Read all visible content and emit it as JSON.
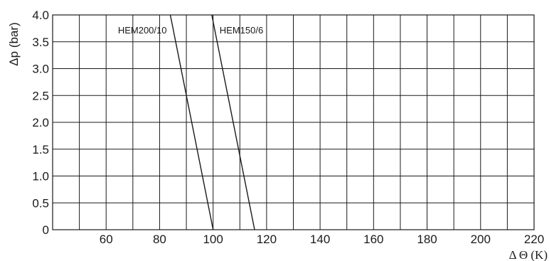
{
  "chart_data": {
    "type": "line",
    "xlabel": "Δ Θ (K)",
    "ylabel": "Δp (bar)",
    "xlim": [
      40,
      220
    ],
    "ylim": [
      0,
      4.0
    ],
    "x_ticks": [
      60,
      80,
      100,
      120,
      140,
      160,
      180,
      200,
      220
    ],
    "x_tick_labels": [
      "60",
      "80",
      "100",
      "120",
      "140",
      "160",
      "180",
      "200",
      "220"
    ],
    "y_ticks": [
      0,
      0.5,
      1.0,
      1.5,
      2.0,
      2.5,
      3.0,
      3.5,
      4.0
    ],
    "y_tick_labels": [
      "0",
      "0.5",
      "1.0",
      "1.5",
      "2.0",
      "2.5",
      "3.0",
      "3.5",
      "4.0"
    ],
    "x_grid_step": 10,
    "grid": true,
    "series": [
      {
        "name": "HEM200/10",
        "x": [
          84,
          100
        ],
        "y": [
          4.0,
          0
        ]
      },
      {
        "name": "HEM150/6",
        "x": [
          99.5,
          115.5
        ],
        "y": [
          4.0,
          0
        ]
      }
    ]
  }
}
